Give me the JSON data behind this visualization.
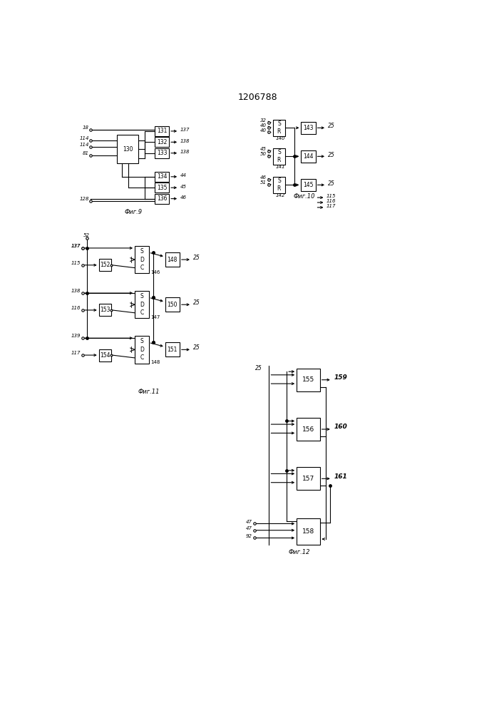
{
  "title": "1206788",
  "background": "#ffffff",
  "fig9_caption": "Фиг.9",
  "fig10_caption": "Фиг.10",
  "fig11_caption": "Фиг.11",
  "fig12_caption": "Фиг.12"
}
